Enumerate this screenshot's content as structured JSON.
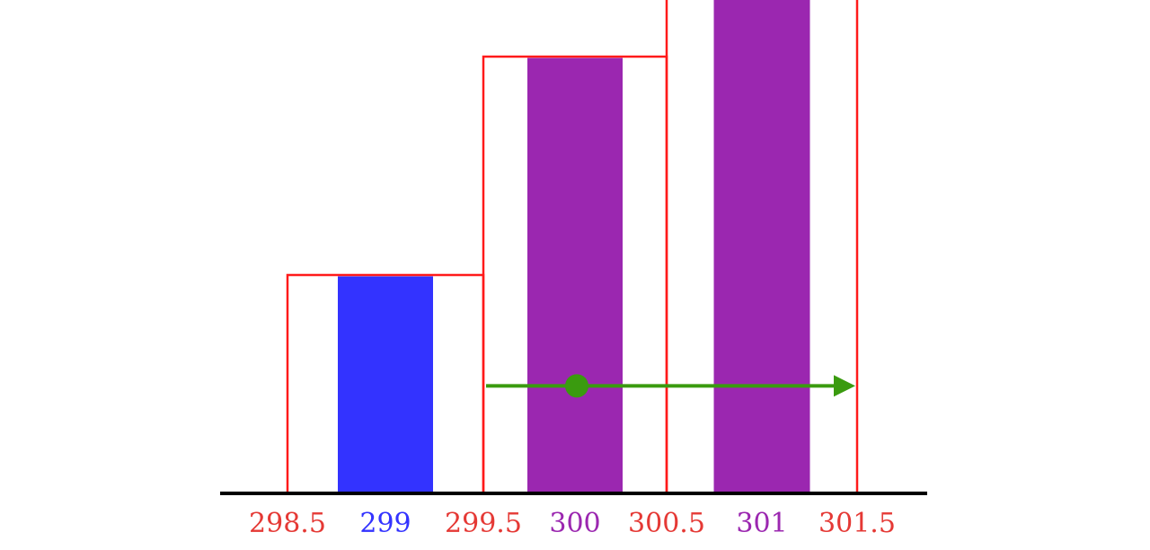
{
  "chart_data": {
    "type": "bar",
    "description_of_axis": "",
    "categories": [
      "299",
      "300",
      "301"
    ],
    "values": [
      1,
      2,
      2.4
    ],
    "bar_colors": [
      "#3333ff",
      "#9b27b0",
      "#9b27b0"
    ],
    "class_intervals": [
      {
        "from": 298.5,
        "to": 299.5
      },
      {
        "from": 299.5,
        "to": 300.5
      },
      {
        "from": 300.5,
        "to": 301.5
      }
    ],
    "boundary_labels": [
      "298.5",
      "299.5",
      "300.5",
      "301.5"
    ],
    "center_labels": [
      "299",
      "300",
      "301"
    ],
    "colors": {
      "interval_outline": "#ff1a1a",
      "boundary_label": "#e53935",
      "first_bar": "#3333ff",
      "other_bars": "#9b27b0",
      "arrow": "#3a9b0f",
      "axis": "#000000"
    },
    "arrow": {
      "start_x": 299.5,
      "dot_x": 300,
      "end_x": 301.5,
      "level": 0.55
    }
  }
}
